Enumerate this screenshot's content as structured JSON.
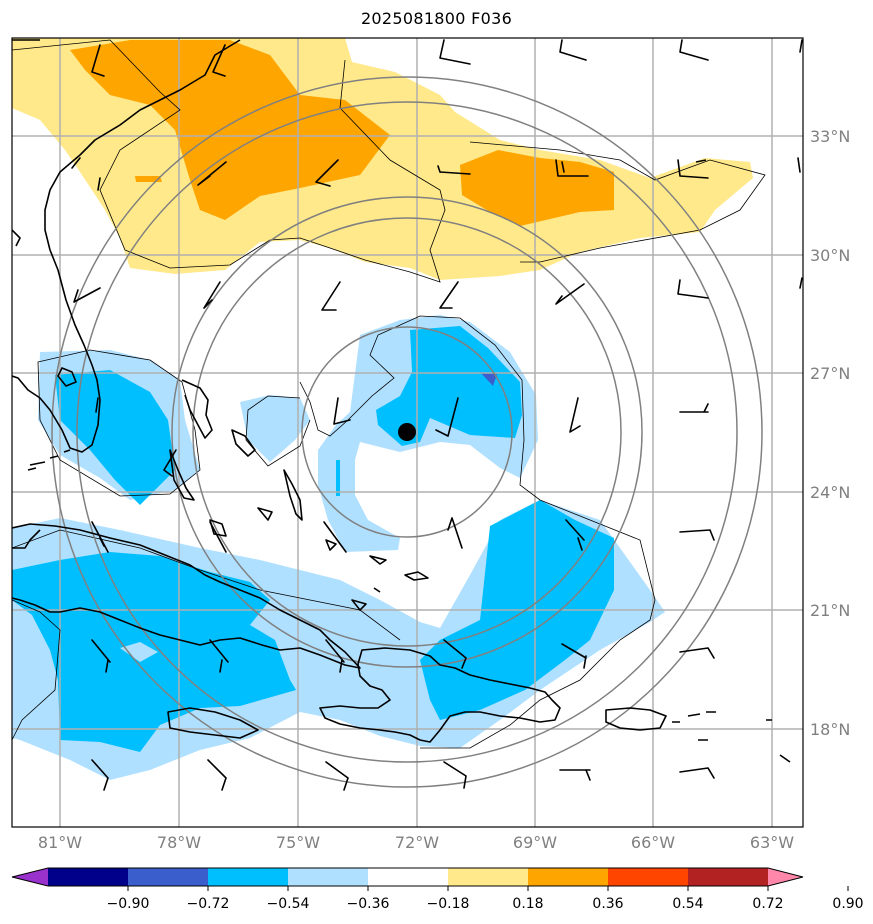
{
  "title": "2025081800 F036",
  "colors": {
    "background": "#ffffff",
    "gridline": "#b0b0b0",
    "range_ring": "#808080",
    "coastline": "#000000",
    "tick_text": "#808080",
    "storm_center": "#000000"
  },
  "axes": {
    "lon_labels": [
      "81°W",
      "78°W",
      "75°W",
      "72°W",
      "69°W",
      "66°W",
      "63°W"
    ],
    "lat_labels": [
      "33°N",
      "30°N",
      "27°N",
      "24°N",
      "21°N",
      "18°N"
    ],
    "lon_range": [
      -82.2,
      -62.3
    ],
    "lat_range": [
      15.4,
      35.3
    ]
  },
  "colorbar": {
    "ticks": [
      "−0.90",
      "−0.72",
      "−0.54",
      "−0.36",
      "−0.18",
      "0.18",
      "0.36",
      "0.54",
      "0.72",
      "0.90"
    ],
    "colors": [
      "#9932CC",
      "#00008B",
      "#3A5FCD",
      "#00BFFF",
      "#B0E0FF",
      "#FFFFFF",
      "#FFE98A",
      "#FFA500",
      "#FF4500",
      "#B22222",
      "#FF88AA"
    ]
  },
  "storm_center": {
    "lon": -72.2,
    "lat": 25.5
  },
  "range_rings_deg": [
    3,
    5,
    7,
    9,
    11
  ]
}
